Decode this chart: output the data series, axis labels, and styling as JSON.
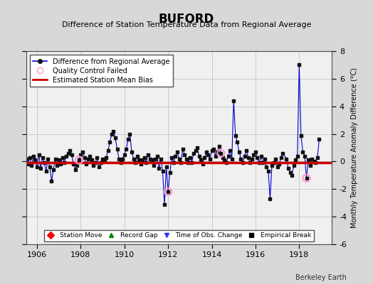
{
  "title": "BUFORD",
  "subtitle": "Difference of Station Temperature Data from Regional Average",
  "ylabel": "Monthly Temperature Anomaly Difference (°C)",
  "xlabel_years": [
    1906,
    1908,
    1910,
    1912,
    1914,
    1916,
    1918
  ],
  "xlim": [
    1905.5,
    1919.5
  ],
  "ylim": [
    -6,
    8
  ],
  "yticks": [
    -6,
    -4,
    -2,
    0,
    2,
    4,
    6,
    8
  ],
  "bias_value": -0.1,
  "background_color": "#d8d8d8",
  "plot_bg_color": "#f0f0f0",
  "line_color": "#0000cc",
  "bias_color": "#cc0000",
  "marker_color": "#111111",
  "qc_color": "#ff99cc",
  "footer": "Berkeley Earth",
  "data": [
    [
      1905.083,
      0.3
    ],
    [
      1905.167,
      0.1
    ],
    [
      1905.25,
      0.4
    ],
    [
      1905.333,
      -0.1
    ],
    [
      1905.417,
      0.5
    ],
    [
      1905.5,
      0.2
    ],
    [
      1905.583,
      -0.2
    ],
    [
      1905.667,
      0.3
    ],
    [
      1905.75,
      -0.3
    ],
    [
      1905.833,
      0.4
    ],
    [
      1905.917,
      0.1
    ],
    [
      1906.0,
      -0.4
    ],
    [
      1906.083,
      0.5
    ],
    [
      1906.167,
      -0.5
    ],
    [
      1906.25,
      0.3
    ],
    [
      1906.333,
      -0.1
    ],
    [
      1906.417,
      -0.7
    ],
    [
      1906.5,
      0.2
    ],
    [
      1906.583,
      -0.4
    ],
    [
      1906.667,
      -1.4
    ],
    [
      1906.75,
      -0.6
    ],
    [
      1906.833,
      0.2
    ],
    [
      1906.917,
      -0.3
    ],
    [
      1907.0,
      0.1
    ],
    [
      1907.083,
      -0.2
    ],
    [
      1907.167,
      0.3
    ],
    [
      1907.25,
      -0.1
    ],
    [
      1907.333,
      0.4
    ],
    [
      1907.417,
      0.6
    ],
    [
      1907.5,
      0.8
    ],
    [
      1907.583,
      0.5
    ],
    [
      1907.667,
      -0.2
    ],
    [
      1907.75,
      -0.6
    ],
    [
      1907.833,
      -0.3
    ],
    [
      1907.917,
      0.1
    ],
    [
      1908.0,
      0.5
    ],
    [
      1908.083,
      0.7
    ],
    [
      1908.167,
      0.3
    ],
    [
      1908.25,
      -0.2
    ],
    [
      1908.333,
      0.2
    ],
    [
      1908.417,
      0.4
    ],
    [
      1908.5,
      0.1
    ],
    [
      1908.583,
      -0.3
    ],
    [
      1908.667,
      -0.1
    ],
    [
      1908.75,
      0.3
    ],
    [
      1908.833,
      -0.4
    ],
    [
      1908.917,
      -0.1
    ],
    [
      1909.0,
      0.2
    ],
    [
      1909.083,
      0.0
    ],
    [
      1909.167,
      0.3
    ],
    [
      1909.25,
      0.8
    ],
    [
      1909.333,
      1.4
    ],
    [
      1909.417,
      2.0
    ],
    [
      1909.5,
      2.2
    ],
    [
      1909.583,
      1.7
    ],
    [
      1909.667,
      0.9
    ],
    [
      1909.75,
      0.2
    ],
    [
      1909.833,
      -0.1
    ],
    [
      1909.917,
      0.2
    ],
    [
      1910.0,
      0.5
    ],
    [
      1910.083,
      0.9
    ],
    [
      1910.167,
      1.6
    ],
    [
      1910.25,
      2.0
    ],
    [
      1910.333,
      0.7
    ],
    [
      1910.417,
      0.2
    ],
    [
      1910.5,
      -0.1
    ],
    [
      1910.583,
      0.4
    ],
    [
      1910.667,
      0.1
    ],
    [
      1910.75,
      -0.2
    ],
    [
      1910.833,
      0.1
    ],
    [
      1910.917,
      0.3
    ],
    [
      1911.0,
      -0.1
    ],
    [
      1911.083,
      0.5
    ],
    [
      1911.167,
      0.2
    ],
    [
      1911.25,
      0.1
    ],
    [
      1911.333,
      -0.3
    ],
    [
      1911.417,
      0.2
    ],
    [
      1911.5,
      0.4
    ],
    [
      1911.583,
      -0.5
    ],
    [
      1911.667,
      0.2
    ],
    [
      1911.75,
      -0.7
    ],
    [
      1911.833,
      -3.1
    ],
    [
      1911.917,
      -0.4
    ],
    [
      1912.0,
      -2.2
    ],
    [
      1912.083,
      -0.8
    ],
    [
      1912.167,
      0.3
    ],
    [
      1912.25,
      -0.1
    ],
    [
      1912.333,
      0.4
    ],
    [
      1912.417,
      0.7
    ],
    [
      1912.5,
      0.2
    ],
    [
      1912.583,
      -0.1
    ],
    [
      1912.667,
      0.9
    ],
    [
      1912.75,
      0.5
    ],
    [
      1912.833,
      0.2
    ],
    [
      1912.917,
      -0.1
    ],
    [
      1913.0,
      0.3
    ],
    [
      1913.083,
      -0.1
    ],
    [
      1913.167,
      0.6
    ],
    [
      1913.25,
      0.8
    ],
    [
      1913.333,
      1.0
    ],
    [
      1913.417,
      0.4
    ],
    [
      1913.5,
      0.1
    ],
    [
      1913.583,
      -0.2
    ],
    [
      1913.667,
      0.3
    ],
    [
      1913.75,
      0.7
    ],
    [
      1913.833,
      0.5
    ],
    [
      1913.917,
      0.2
    ],
    [
      1914.0,
      0.8
    ],
    [
      1914.083,
      0.9
    ],
    [
      1914.167,
      0.4
    ],
    [
      1914.25,
      0.7
    ],
    [
      1914.333,
      1.1
    ],
    [
      1914.417,
      0.6
    ],
    [
      1914.5,
      0.3
    ],
    [
      1914.583,
      0.1
    ],
    [
      1914.667,
      -0.1
    ],
    [
      1914.75,
      0.4
    ],
    [
      1914.833,
      0.8
    ],
    [
      1914.917,
      0.2
    ],
    [
      1915.0,
      4.4
    ],
    [
      1915.083,
      1.9
    ],
    [
      1915.167,
      1.4
    ],
    [
      1915.25,
      0.7
    ],
    [
      1915.333,
      0.2
    ],
    [
      1915.417,
      -0.1
    ],
    [
      1915.5,
      0.4
    ],
    [
      1915.583,
      0.8
    ],
    [
      1915.667,
      0.3
    ],
    [
      1915.75,
      -0.1
    ],
    [
      1915.833,
      0.2
    ],
    [
      1915.917,
      0.5
    ],
    [
      1916.0,
      0.7
    ],
    [
      1916.083,
      0.3
    ],
    [
      1916.167,
      -0.1
    ],
    [
      1916.25,
      0.4
    ],
    [
      1916.333,
      -0.1
    ],
    [
      1916.417,
      0.2
    ],
    [
      1916.5,
      -0.4
    ],
    [
      1916.583,
      -0.7
    ],
    [
      1916.667,
      -2.7
    ],
    [
      1916.75,
      -0.3
    ],
    [
      1916.833,
      -0.1
    ],
    [
      1916.917,
      0.2
    ],
    [
      1917.0,
      -0.4
    ],
    [
      1917.083,
      -0.2
    ],
    [
      1917.167,
      0.3
    ],
    [
      1917.25,
      0.6
    ],
    [
      1917.417,
      0.2
    ],
    [
      1917.5,
      -0.5
    ],
    [
      1917.583,
      -0.8
    ],
    [
      1917.667,
      -1.0
    ],
    [
      1917.75,
      -0.3
    ],
    [
      1917.833,
      0.1
    ],
    [
      1917.917,
      0.4
    ],
    [
      1918.0,
      7.0
    ],
    [
      1918.083,
      1.9
    ],
    [
      1918.167,
      0.7
    ],
    [
      1918.25,
      0.4
    ],
    [
      1918.333,
      -1.2
    ],
    [
      1918.417,
      0.1
    ],
    [
      1918.5,
      -0.3
    ],
    [
      1918.583,
      0.2
    ],
    [
      1918.667,
      0.0
    ],
    [
      1918.75,
      -0.1
    ],
    [
      1918.833,
      0.3
    ],
    [
      1918.917,
      1.6
    ]
  ],
  "qc_failed": [
    [
      1907.917,
      0.1
    ],
    [
      1912.0,
      -2.2
    ],
    [
      1914.417,
      0.6
    ],
    [
      1918.333,
      -1.2
    ]
  ]
}
